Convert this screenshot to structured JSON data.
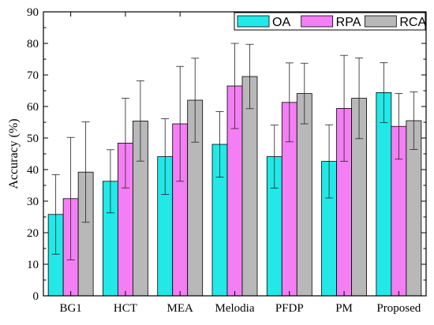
{
  "chart_data": {
    "type": "bar",
    "title": "",
    "xlabel": "",
    "ylabel": "Accuracy (%)",
    "ylim": [
      0,
      90
    ],
    "yticks": [
      0,
      10,
      20,
      30,
      40,
      50,
      60,
      70,
      80,
      90
    ],
    "grid": false,
    "legend_position": "top-right",
    "categories": [
      "BG1",
      "HCT",
      "MEA",
      "Melodia",
      "PFDP",
      "PM",
      "Proposed"
    ],
    "series": [
      {
        "name": "OA",
        "color": "#22e8e8",
        "values": [
          25.8,
          36.3,
          44.1,
          48.0,
          44.1,
          42.6,
          64.4
        ],
        "errors": [
          12.6,
          10.0,
          12.0,
          10.4,
          10.0,
          11.6,
          9.5
        ]
      },
      {
        "name": "RPA",
        "color": "#f47ef4",
        "values": [
          30.8,
          48.4,
          54.5,
          66.5,
          61.3,
          59.4,
          53.7
        ],
        "errors": [
          19.4,
          14.2,
          18.2,
          13.5,
          12.5,
          16.8,
          10.4
        ]
      },
      {
        "name": "RCA",
        "color": "#b8b8b8",
        "values": [
          39.2,
          55.4,
          62.0,
          69.5,
          64.1,
          62.6,
          55.5
        ],
        "errors": [
          15.9,
          12.7,
          13.3,
          10.2,
          9.6,
          12.8,
          9.1
        ]
      }
    ]
  }
}
